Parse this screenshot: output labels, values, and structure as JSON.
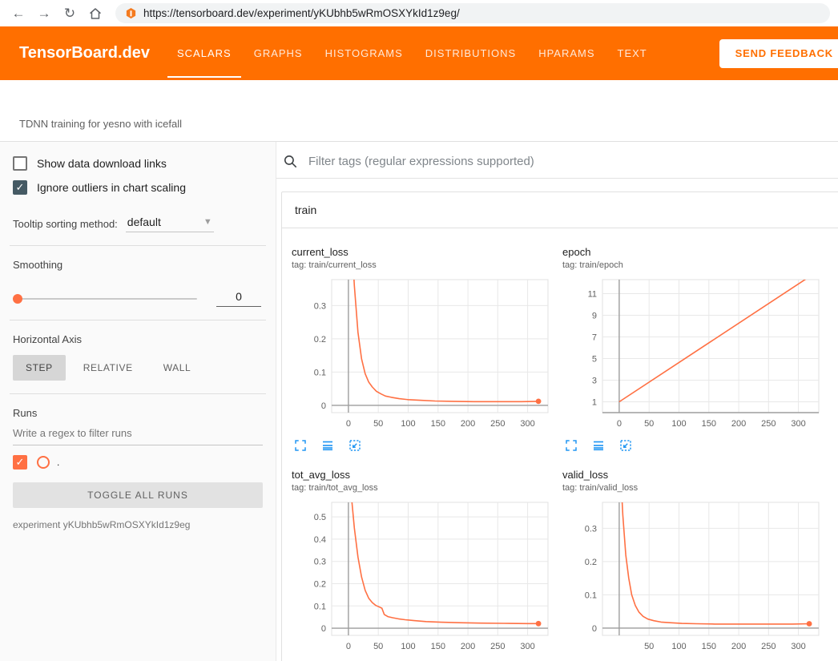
{
  "browser": {
    "url": "https://tensorboard.dev/experiment/yKUbhb5wRmOSXYkId1z9eg/",
    "icons": {
      "back": "←",
      "forward": "→",
      "reload": "↻"
    }
  },
  "header": {
    "brand": "TensorBoard.dev",
    "tabs": [
      {
        "label": "SCALARS",
        "active": true
      },
      {
        "label": "GRAPHS",
        "active": false
      },
      {
        "label": "HISTOGRAMS",
        "active": false
      },
      {
        "label": "DISTRIBUTIONS",
        "active": false
      },
      {
        "label": "HPARAMS",
        "active": false
      },
      {
        "label": "TEXT",
        "active": false
      }
    ],
    "feedback_label": "SEND FEEDBACK"
  },
  "experiment": {
    "description": "TDNN training for yesno with icefall",
    "id_label": "experiment yKUbhb5wRmOSXYkId1z9eg"
  },
  "sidebar": {
    "show_download_label": "Show data download links",
    "ignore_outliers_label": "Ignore outliers in chart scaling",
    "tooltip_sorting_label": "Tooltip sorting method:",
    "tooltip_sorting_value": "default",
    "smoothing_label": "Smoothing",
    "smoothing_value": "0",
    "horizontal_axis_label": "Horizontal Axis",
    "axis_buttons": [
      "STEP",
      "RELATIVE",
      "WALL"
    ],
    "axis_active": "STEP",
    "runs_label": "Runs",
    "runs_filter_placeholder": "Write a regex to filter runs",
    "run_name": ".",
    "toggle_all_label": "TOGGLE ALL RUNS"
  },
  "main": {
    "filter_placeholder": "Filter tags (regular expressions supported)",
    "section_title": "train",
    "chart_action_icons": [
      "expand",
      "log-scale",
      "fit-domain"
    ]
  },
  "colors": {
    "header_orange": "#ff6f00",
    "run_color": "#ff7043",
    "action_icon_blue": "#2196f3"
  },
  "chart_data": [
    {
      "type": "line",
      "title": "current_loss",
      "subtitle": "tag: train/current_loss",
      "xlim": [
        -28,
        334
      ],
      "ylim": [
        -0.022,
        0.378
      ],
      "xticks": [
        0,
        50,
        100,
        150,
        200,
        250,
        300
      ],
      "yticks": [
        0,
        0.1,
        0.2,
        0.3
      ],
      "grid": true,
      "end_dot": true,
      "series": [
        {
          "name": ".",
          "color": "#ff7043",
          "points": [
            [
              4,
              0.55
            ],
            [
              10,
              0.36
            ],
            [
              16,
              0.22
            ],
            [
              22,
              0.14
            ],
            [
              28,
              0.095
            ],
            [
              34,
              0.07
            ],
            [
              40,
              0.055
            ],
            [
              47,
              0.042
            ],
            [
              55,
              0.034
            ],
            [
              62,
              0.028
            ],
            [
              72,
              0.024
            ],
            [
              85,
              0.02
            ],
            [
              100,
              0.017
            ],
            [
              120,
              0.015
            ],
            [
              145,
              0.013
            ],
            [
              175,
              0.012
            ],
            [
              210,
              0.011
            ],
            [
              250,
              0.011
            ],
            [
              290,
              0.011
            ],
            [
              318,
              0.012
            ]
          ]
        }
      ]
    },
    {
      "type": "line",
      "title": "epoch",
      "subtitle": "tag: train/epoch",
      "xlim": [
        -28,
        334
      ],
      "ylim": [
        0,
        12.3
      ],
      "xticks": [
        0,
        50,
        100,
        150,
        200,
        250,
        300
      ],
      "yticks": [
        1,
        3,
        5,
        7,
        9,
        11
      ],
      "grid": true,
      "end_dot": false,
      "series": [
        {
          "name": ".",
          "color": "#ff7043",
          "points": [
            [
              0,
              1
            ],
            [
              322,
              12.7
            ]
          ]
        }
      ]
    },
    {
      "type": "line",
      "title": "tot_avg_loss",
      "subtitle": "tag: train/tot_avg_loss",
      "xlim": [
        -28,
        334
      ],
      "ylim": [
        -0.032,
        0.565
      ],
      "xticks": [
        0,
        50,
        100,
        150,
        200,
        250,
        300
      ],
      "yticks": [
        0,
        0.1,
        0.2,
        0.3,
        0.4,
        0.5
      ],
      "grid": true,
      "end_dot": true,
      "series": [
        {
          "name": ".",
          "color": "#ff7043",
          "points": [
            [
              4,
              0.62
            ],
            [
              10,
              0.45
            ],
            [
              16,
              0.32
            ],
            [
              22,
              0.23
            ],
            [
              28,
              0.17
            ],
            [
              34,
              0.135
            ],
            [
              40,
              0.115
            ],
            [
              46,
              0.102
            ],
            [
              52,
              0.095
            ],
            [
              56,
              0.09
            ],
            [
              60,
              0.062
            ],
            [
              66,
              0.052
            ],
            [
              74,
              0.047
            ],
            [
              84,
              0.042
            ],
            [
              95,
              0.038
            ],
            [
              110,
              0.034
            ],
            [
              130,
              0.03
            ],
            [
              155,
              0.027
            ],
            [
              185,
              0.025
            ],
            [
              220,
              0.023
            ],
            [
              260,
              0.022
            ],
            [
              300,
              0.021
            ],
            [
              318,
              0.021
            ]
          ]
        }
      ]
    },
    {
      "type": "line",
      "title": "valid_loss",
      "subtitle": "tag: train/valid_loss",
      "xlim": [
        -28,
        334
      ],
      "ylim": [
        -0.022,
        0.378
      ],
      "xticks": [
        50,
        100,
        150,
        200,
        250,
        300
      ],
      "yticks": [
        0,
        0.1,
        0.2,
        0.3
      ],
      "grid": true,
      "end_dot": true,
      "series": [
        {
          "name": ".",
          "color": "#ff7043",
          "points": [
            [
              1,
              0.52
            ],
            [
              6,
              0.34
            ],
            [
              11,
              0.22
            ],
            [
              16,
              0.15
            ],
            [
              21,
              0.1
            ],
            [
              27,
              0.068
            ],
            [
              33,
              0.048
            ],
            [
              40,
              0.035
            ],
            [
              48,
              0.027
            ],
            [
              58,
              0.022
            ],
            [
              70,
              0.018
            ],
            [
              85,
              0.016
            ],
            [
              105,
              0.014
            ],
            [
              130,
              0.013
            ],
            [
              160,
              0.012
            ],
            [
              200,
              0.012
            ],
            [
              245,
              0.012
            ],
            [
              290,
              0.012
            ],
            [
              318,
              0.013
            ]
          ]
        }
      ]
    }
  ]
}
